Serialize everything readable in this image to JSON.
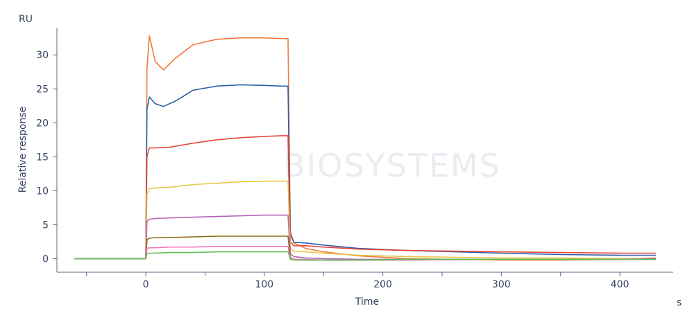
{
  "chart_data": {
    "type": "line",
    "title": "",
    "xlabel": "Time",
    "x_unit": "s",
    "ylabel": "Relative response",
    "y_unit": "RU",
    "xlim": [
      -75,
      445
    ],
    "ylim": [
      -2,
      34
    ],
    "x_ticks": [
      0,
      100,
      200,
      300,
      400
    ],
    "x_tick_labels": [
      "0",
      "100",
      "200",
      "300",
      "400"
    ],
    "y_ticks": [
      0,
      5,
      10,
      15,
      20,
      25,
      30
    ],
    "y_tick_labels": [
      "0",
      "5",
      "10",
      "15",
      "20",
      "25",
      "30"
    ],
    "grid": false,
    "legend": "none",
    "watermark": "BIOSYSTEMS",
    "series": [
      {
        "color": "#f07a3a",
        "x": [
          -60,
          0,
          1,
          3,
          8,
          15,
          25,
          40,
          60,
          80,
          100,
          115,
          120,
          121,
          122,
          125,
          135,
          150,
          180,
          220,
          300,
          350,
          400,
          430
        ],
        "y": [
          0,
          0,
          28,
          32.8,
          29,
          27.8,
          29.5,
          31.5,
          32.3,
          32.5,
          32.5,
          32.4,
          32.4,
          18,
          4,
          2.3,
          1.5,
          1.0,
          0.4,
          0.0,
          -0.2,
          -0.2,
          -0.1,
          0.1
        ]
      },
      {
        "color": "#2f5fa8",
        "x": [
          -60,
          0,
          1,
          3,
          8,
          15,
          25,
          40,
          60,
          80,
          100,
          115,
          120,
          121,
          122,
          125,
          135,
          150,
          180,
          220,
          300,
          350,
          400,
          430
        ],
        "y": [
          0,
          0,
          22,
          23.8,
          22.8,
          22.4,
          23.2,
          24.8,
          25.4,
          25.6,
          25.5,
          25.4,
          25.4,
          13,
          3.5,
          2.4,
          2.3,
          2.0,
          1.5,
          1.2,
          0.8,
          0.6,
          0.5,
          0.5
        ]
      },
      {
        "color": "#e8463c",
        "x": [
          -60,
          0,
          1,
          3,
          8,
          20,
          40,
          60,
          80,
          100,
          115,
          120,
          121,
          122,
          125,
          135,
          150,
          180,
          220,
          300,
          350,
          400,
          430
        ],
        "y": [
          0,
          0,
          15,
          16.3,
          16.3,
          16.4,
          17.0,
          17.5,
          17.8,
          18.0,
          18.1,
          18.1,
          9,
          2.5,
          1.9,
          1.9,
          1.7,
          1.4,
          1.2,
          1.0,
          0.9,
          0.8,
          0.8
        ]
      },
      {
        "color": "#e6c640",
        "x": [
          -60,
          0,
          1,
          3,
          8,
          20,
          40,
          60,
          80,
          100,
          115,
          120,
          121,
          122,
          125,
          135,
          150,
          180,
          220,
          300,
          350,
          400,
          430
        ],
        "y": [
          0,
          0,
          9.5,
          10.3,
          10.4,
          10.5,
          10.9,
          11.1,
          11.3,
          11.4,
          11.4,
          11.4,
          6,
          1.5,
          1.1,
          1.0,
          0.8,
          0.5,
          0.3,
          0.1,
          0.1,
          0.0,
          0.0
        ]
      },
      {
        "color": "#b463b8",
        "x": [
          -60,
          0,
          1,
          3,
          8,
          20,
          40,
          60,
          80,
          100,
          115,
          120,
          121,
          122,
          125,
          135,
          150,
          180,
          220,
          300,
          350,
          400,
          430
        ],
        "y": [
          0,
          0,
          5.5,
          5.8,
          5.9,
          6.0,
          6.1,
          6.2,
          6.3,
          6.4,
          6.4,
          6.4,
          3.3,
          0.7,
          0.3,
          0.1,
          0.0,
          -0.1,
          -0.1,
          -0.1,
          -0.1,
          -0.1,
          0.0
        ]
      },
      {
        "color": "#8c6a14",
        "x": [
          -60,
          0,
          1,
          3,
          8,
          20,
          40,
          60,
          80,
          100,
          115,
          120,
          121,
          122,
          125,
          135,
          150,
          180,
          220,
          300,
          350,
          400,
          430
        ],
        "y": [
          0,
          0,
          2.8,
          3.0,
          3.1,
          3.1,
          3.2,
          3.3,
          3.3,
          3.3,
          3.3,
          3.3,
          1.7,
          0.2,
          -0.1,
          -0.2,
          -0.2,
          -0.2,
          -0.2,
          -0.1,
          -0.1,
          -0.1,
          -0.1
        ]
      },
      {
        "color": "#f178b6",
        "x": [
          -60,
          0,
          1,
          3,
          8,
          20,
          40,
          60,
          80,
          100,
          115,
          120,
          121,
          122,
          125,
          135,
          150,
          180,
          220,
          300,
          350,
          400,
          430
        ],
        "y": [
          0,
          0,
          1.5,
          1.6,
          1.6,
          1.7,
          1.7,
          1.8,
          1.8,
          1.8,
          1.8,
          1.8,
          0.9,
          0.1,
          -0.1,
          -0.1,
          -0.2,
          -0.2,
          -0.2,
          -0.1,
          -0.1,
          -0.1,
          -0.1
        ]
      },
      {
        "color": "#5cbf5a",
        "x": [
          -60,
          0,
          1,
          3,
          8,
          20,
          40,
          60,
          80,
          100,
          115,
          120,
          121,
          122,
          125,
          135,
          150,
          180,
          220,
          300,
          350,
          400,
          430
        ],
        "y": [
          0,
          0,
          0.7,
          0.8,
          0.8,
          0.9,
          0.9,
          1.0,
          1.0,
          1.0,
          1.0,
          1.0,
          0.5,
          -0.1,
          -0.2,
          -0.2,
          -0.2,
          -0.2,
          -0.1,
          -0.1,
          -0.1,
          -0.1,
          -0.1
        ]
      }
    ]
  }
}
